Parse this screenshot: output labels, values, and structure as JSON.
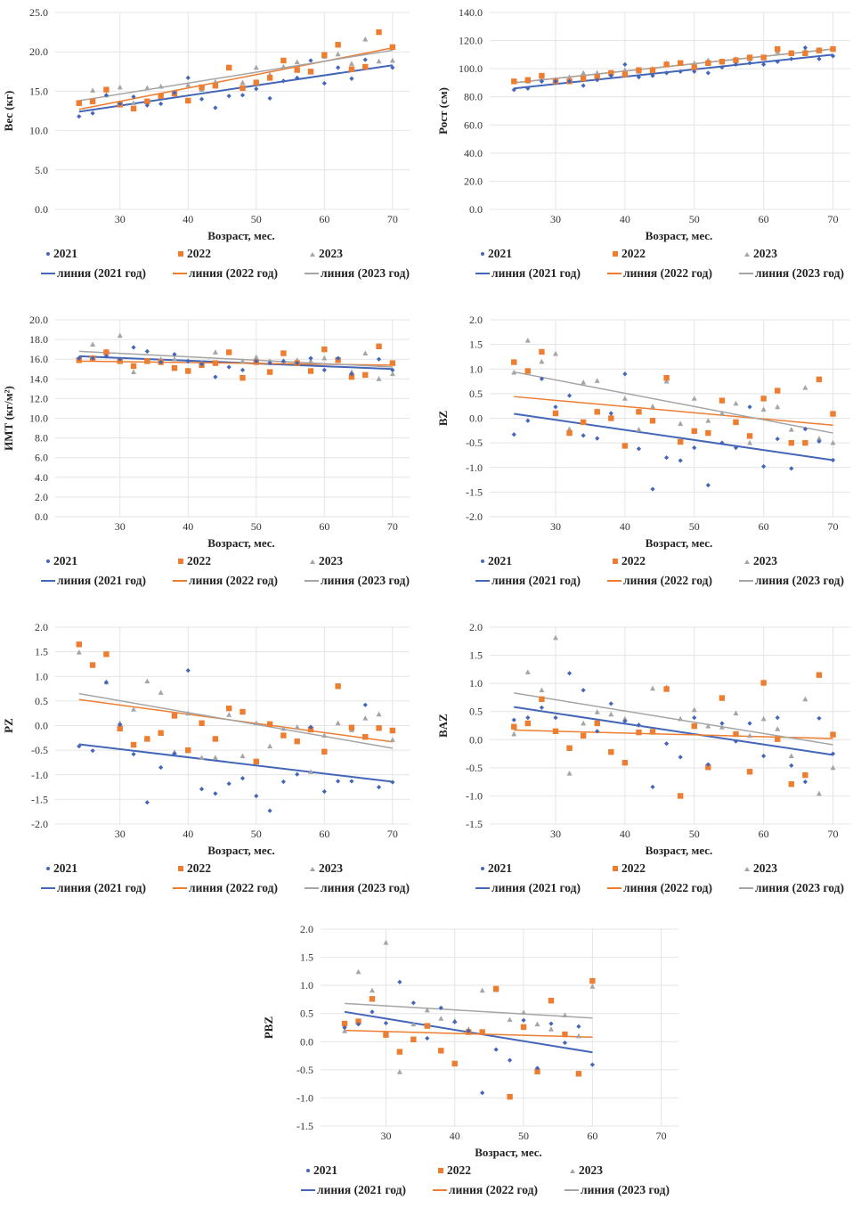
{
  "figure": {
    "legend": {
      "series": [
        "2021",
        "2022",
        "2023"
      ],
      "trend": [
        "линия (2021 год)",
        "линия (2022 год)",
        "линия (2023 год)"
      ]
    },
    "colors": {
      "2021": "#4466b8",
      "2022": "#ed7d31",
      "2023": "#a5a5a5"
    }
  },
  "chart_data": [
    {
      "id": "weight",
      "type": "scatter",
      "title": "",
      "xlabel": "Возраст, мес.",
      "ylabel": "Вес (кг)",
      "xticks": [
        "30",
        "40",
        "50",
        "60",
        "70"
      ],
      "yticks": [
        "0.0",
        "5.0",
        "10.0",
        "15.0",
        "20.0",
        "25.0"
      ],
      "xlim": [
        20.5,
        72.5
      ],
      "ylim": [
        0,
        25
      ],
      "grid": true,
      "legend_position": "bottom",
      "x": [
        24,
        26,
        28,
        30,
        32,
        34,
        36,
        38,
        40,
        42,
        44,
        46,
        48,
        50,
        52,
        54,
        56,
        58,
        60,
        62,
        64,
        66,
        68,
        70
      ],
      "series": [
        {
          "name": "2021",
          "marker": "diamond",
          "values": [
            11.8,
            12.2,
            14.5,
            13.4,
            14.3,
            13.2,
            13.4,
            14.8,
            16.7,
            14.0,
            12.9,
            14.4,
            14.5,
            15.3,
            14.1,
            16.3,
            16.7,
            18.9,
            16.0,
            18.0,
            16.6,
            19.0,
            null,
            18.0
          ],
          "trend": [
            12.4,
            18.3
          ]
        },
        {
          "name": "2022",
          "marker": "square",
          "values": [
            13.5,
            13.7,
            15.2,
            13.3,
            12.8,
            13.7,
            14.4,
            14.7,
            13.8,
            15.5,
            15.7,
            18.0,
            15.4,
            16.1,
            16.7,
            18.9,
            17.7,
            17.5,
            19.6,
            20.9,
            17.8,
            18.1,
            22.5,
            20.6
          ],
          "trend": [
            12.7,
            20.5
          ]
        },
        {
          "name": "2023",
          "marker": "triangle",
          "values": [
            13.4,
            15.1,
            14.5,
            15.5,
            13.5,
            15.4,
            15.6,
            14.9,
            15.8,
            15.2,
            16.2,
            17.9,
            16.1,
            18.0,
            17.1,
            18.1,
            18.7,
            17.4,
            19.4,
            19.7,
            18.5,
            21.6,
            18.8,
            18.9
          ],
          "trend": [
            13.8,
            20.2
          ]
        }
      ]
    },
    {
      "id": "height",
      "type": "scatter",
      "title": "",
      "xlabel": "Возраст, мес.",
      "ylabel": "Рост (см)",
      "xticks": [
        "30",
        "40",
        "50",
        "60",
        "70"
      ],
      "yticks": [
        "0.0",
        "20.0",
        "40.0",
        "60.0",
        "80.0",
        "100.0",
        "120.0",
        "140.0"
      ],
      "xlim": [
        20.5,
        72.5
      ],
      "ylim": [
        0,
        140
      ],
      "grid": true,
      "legend_position": "bottom",
      "x": [
        24,
        26,
        28,
        30,
        32,
        34,
        36,
        38,
        40,
        42,
        44,
        46,
        48,
        50,
        52,
        54,
        56,
        58,
        60,
        62,
        64,
        66,
        68,
        70
      ],
      "series": [
        {
          "name": "2021",
          "marker": "diamond",
          "values": [
            85,
            86,
            91,
            91,
            91,
            88,
            92,
            95,
            103,
            94,
            95,
            97,
            98,
            98,
            97,
            101,
            103,
            104,
            103,
            105,
            107,
            115,
            107,
            109
          ],
          "trend": [
            86,
            110
          ]
        },
        {
          "name": "2022",
          "marker": "square",
          "values": [
            91,
            92,
            95,
            91,
            91,
            93,
            94,
            97,
            96,
            99,
            99,
            103,
            104,
            101,
            104,
            105,
            106,
            108,
            108,
            114,
            111,
            111,
            113,
            114
          ],
          "trend": [
            90,
            114
          ]
        },
        {
          "name": "2023",
          "marker": "triangle",
          "values": [
            91,
            91,
            93,
            92,
            94,
            97,
            97,
            97,
            99,
            98,
            100,
            104,
            104,
            104,
            106,
            105,
            107,
            107,
            108,
            112,
            111,
            113,
            113,
            114
          ],
          "trend": [
            90,
            114
          ]
        }
      ]
    },
    {
      "id": "bmi",
      "type": "scatter",
      "title": "",
      "xlabel": "Возраст, мес.",
      "ylabel": "ИМТ (кг/м²)",
      "xticks": [
        "30",
        "40",
        "50",
        "60",
        "70"
      ],
      "yticks": [
        "0.0",
        "2.0",
        "4.0",
        "6.0",
        "8.0",
        "10.0",
        "12.0",
        "14.0",
        "16.0",
        "18.0",
        "20.0"
      ],
      "xlim": [
        20.5,
        72.5
      ],
      "ylim": [
        0,
        20
      ],
      "grid": true,
      "legend_position": "bottom",
      "x": [
        24,
        26,
        28,
        30,
        32,
        34,
        36,
        38,
        40,
        42,
        44,
        46,
        48,
        50,
        52,
        54,
        56,
        58,
        60,
        62,
        64,
        66,
        68,
        70
      ],
      "series": [
        {
          "name": "2021",
          "marker": "diamond",
          "values": [
            16.1,
            16.1,
            16.3,
            16.0,
            17.2,
            16.8,
            15.7,
            16.5,
            15.8,
            15.5,
            14.2,
            15.2,
            14.9,
            15.8,
            15.6,
            15.8,
            15.6,
            16.1,
            14.9,
            16.1,
            14.5,
            null,
            16.0,
            14.9
          ],
          "trend": [
            16.3,
            15.0
          ]
        },
        {
          "name": "2022",
          "marker": "square",
          "values": [
            15.9,
            16.1,
            16.7,
            15.8,
            15.3,
            15.8,
            15.7,
            15.1,
            14.8,
            15.4,
            15.6,
            16.7,
            14.1,
            15.7,
            14.7,
            16.6,
            15.6,
            14.8,
            17.0,
            15.9,
            14.2,
            14.4,
            17.3,
            15.6
          ],
          "trend": [
            15.8,
            15.4
          ]
        },
        {
          "name": "2023",
          "marker": "triangle",
          "values": [
            16.1,
            17.5,
            16.8,
            18.4,
            14.7,
            15.8,
            16.0,
            16.0,
            15.8,
            15.6,
            16.7,
            16.7,
            15.8,
            16.2,
            15.8,
            15.8,
            15.9,
            15.8,
            16.1,
            16.0,
            14.7,
            16.6,
            14.0,
            14.5
          ],
          "trend": [
            16.8,
            15.2
          ]
        }
      ]
    },
    {
      "id": "bz",
      "type": "scatter",
      "title": "",
      "xlabel": "Возраст, мес.",
      "ylabel": "BZ",
      "xticks": [
        "30",
        "40",
        "50",
        "60",
        "70"
      ],
      "yticks": [
        "-2.0",
        "-1.5",
        "-1.0",
        "-0.5",
        "0.0",
        "0.5",
        "1.0",
        "1.5",
        "2.0"
      ],
      "xlim": [
        20.5,
        72.5
      ],
      "ylim": [
        -2,
        2
      ],
      "grid": true,
      "legend_position": "bottom",
      "x": [
        24,
        26,
        28,
        30,
        32,
        34,
        36,
        38,
        40,
        42,
        44,
        46,
        48,
        50,
        52,
        54,
        56,
        58,
        60,
        62,
        64,
        66,
        68,
        70
      ],
      "series": [
        {
          "name": "2021",
          "marker": "diamond",
          "values": [
            -0.33,
            -0.05,
            0.8,
            0.23,
            0.46,
            -0.35,
            -0.41,
            0.1,
            0.9,
            -0.62,
            -1.44,
            -0.8,
            -0.86,
            -0.6,
            -1.36,
            -0.5,
            -0.6,
            0.23,
            -0.98,
            -0.42,
            -1.02,
            -0.22,
            -0.47,
            -0.85
          ],
          "trend": [
            0.09,
            -0.85
          ]
        },
        {
          "name": "2022",
          "marker": "square",
          "values": [
            1.14,
            0.96,
            1.35,
            0.1,
            -0.3,
            -0.08,
            0.13,
            0.0,
            -0.56,
            0.13,
            -0.05,
            0.82,
            -0.48,
            -0.26,
            -0.3,
            0.36,
            -0.08,
            -0.36,
            0.4,
            0.56,
            -0.5,
            -0.5,
            0.79,
            0.09
          ],
          "trend": [
            0.44,
            -0.14
          ]
        },
        {
          "name": "2023",
          "marker": "triangle",
          "values": [
            0.93,
            1.58,
            1.15,
            1.31,
            -0.22,
            0.73,
            0.76,
            0.03,
            0.4,
            -0.23,
            0.24,
            0.75,
            -0.11,
            0.4,
            -0.05,
            0.1,
            0.3,
            -0.5,
            0.18,
            0.23,
            -0.23,
            0.62,
            -0.41,
            -0.5
          ],
          "trend": [
            0.94,
            -0.3
          ]
        }
      ]
    },
    {
      "id": "pz",
      "type": "scatter",
      "title": "",
      "xlabel": "Возраст, мес.",
      "ylabel": "PZ",
      "xticks": [
        "30",
        "40",
        "50",
        "60",
        "70"
      ],
      "yticks": [
        "-2.0",
        "-1.5",
        "-1.0",
        "-0.5",
        "0.0",
        "0.5",
        "1.0",
        "1.5",
        "2.0"
      ],
      "xlim": [
        20.5,
        72.5
      ],
      "ylim": [
        -2,
        2
      ],
      "grid": true,
      "legend_position": "bottom",
      "x": [
        24,
        26,
        28,
        30,
        32,
        34,
        36,
        38,
        40,
        42,
        44,
        46,
        48,
        50,
        52,
        54,
        56,
        58,
        60,
        62,
        64,
        66,
        68,
        70
      ],
      "series": [
        {
          "name": "2021",
          "marker": "diamond",
          "values": [
            -0.42,
            -0.51,
            0.88,
            0.02,
            -0.58,
            -1.56,
            -0.85,
            -0.57,
            1.12,
            -1.29,
            -1.38,
            -1.18,
            -1.07,
            -1.43,
            -1.73,
            -1.14,
            -0.99,
            -0.03,
            -1.34,
            -1.13,
            -1.13,
            0.42,
            -1.25,
            -1.15
          ],
          "trend": [
            -0.38,
            -1.14
          ]
        },
        {
          "name": "2022",
          "marker": "square",
          "values": [
            1.65,
            1.23,
            1.45,
            -0.06,
            -0.39,
            -0.27,
            -0.15,
            0.2,
            -0.5,
            0.05,
            -0.27,
            0.35,
            0.28,
            -0.73,
            0.03,
            -0.2,
            -0.32,
            -0.08,
            -0.53,
            0.8,
            -0.04,
            -0.23,
            -0.05,
            -0.1
          ],
          "trend": [
            0.53,
            -0.33
          ]
        },
        {
          "name": "2023",
          "marker": "triangle",
          "values": [
            1.49,
            1.23,
            0.88,
            0.05,
            0.33,
            0.9,
            0.67,
            -0.54,
            0.25,
            -0.65,
            -0.65,
            0.22,
            -0.62,
            0.05,
            -0.42,
            -0.06,
            -0.03,
            -0.94,
            -0.2,
            0.05,
            -0.09,
            0.15,
            0.23,
            -0.29
          ],
          "trend": [
            0.65,
            -0.46
          ]
        }
      ]
    },
    {
      "id": "baz",
      "type": "scatter",
      "title": "",
      "xlabel": "Возраст, мес.",
      "ylabel": "BAZ",
      "xticks": [
        "30",
        "40",
        "50",
        "60",
        "70"
      ],
      "yticks": [
        "-1.5",
        "-1.0",
        "-0.5",
        "0.0",
        "0.5",
        "1.0",
        "1.5",
        "2.0"
      ],
      "xlim": [
        20.5,
        72.5
      ],
      "ylim": [
        -1.5,
        2
      ],
      "grid": true,
      "legend_position": "bottom",
      "x": [
        24,
        26,
        28,
        30,
        32,
        34,
        36,
        38,
        40,
        42,
        44,
        46,
        48,
        50,
        52,
        54,
        56,
        58,
        60,
        62,
        64,
        66,
        68,
        70
      ],
      "series": [
        {
          "name": "2021",
          "marker": "diamond",
          "values": [
            0.35,
            0.39,
            0.57,
            0.39,
            1.18,
            0.88,
            0.15,
            0.64,
            0.33,
            0.26,
            -0.84,
            -0.07,
            -0.31,
            0.39,
            -0.44,
            0.29,
            -0.03,
            0.29,
            -0.29,
            0.39,
            -0.46,
            -0.75,
            0.38,
            -0.25
          ],
          "trend": [
            0.58,
            -0.27
          ]
        },
        {
          "name": "2022",
          "marker": "square",
          "values": [
            0.23,
            0.29,
            0.72,
            0.15,
            -0.15,
            0.07,
            0.29,
            -0.22,
            -0.41,
            0.13,
            0.14,
            0.9,
            -1.0,
            0.24,
            -0.49,
            0.74,
            0.1,
            -0.57,
            1.01,
            0.01,
            -0.79,
            -0.63,
            1.15,
            0.09
          ],
          "trend": [
            0.17,
            0.02
          ]
        },
        {
          "name": "2023",
          "marker": "triangle",
          "values": [
            0.1,
            1.2,
            0.88,
            1.81,
            -0.6,
            0.29,
            0.49,
            0.45,
            0.37,
            0.26,
            0.91,
            0.93,
            0.37,
            0.53,
            0.24,
            0.22,
            0.47,
            0.07,
            0.37,
            0.19,
            -0.29,
            0.72,
            -0.96,
            -0.5
          ],
          "trend": [
            0.83,
            -0.09
          ]
        }
      ]
    },
    {
      "id": "pbz",
      "type": "scatter",
      "title": "",
      "xlabel": "Возраст, мес.",
      "ylabel": "PBZ",
      "xticks": [
        "30",
        "40",
        "50",
        "60",
        "70"
      ],
      "yticks": [
        "-1.5",
        "-1.0",
        "-0.5",
        "0.0",
        "0.5",
        "1.0",
        "1.5",
        "2.0"
      ],
      "xlim": [
        20.5,
        72.5
      ],
      "ylim": [
        -1.5,
        2
      ],
      "grid": true,
      "legend_position": "bottom",
      "x": [
        24,
        26,
        28,
        30,
        32,
        34,
        36,
        38,
        40,
        42,
        44,
        46,
        48,
        50,
        52,
        54,
        56,
        58,
        60
      ],
      "series": [
        {
          "name": "2021",
          "marker": "diamond",
          "values": [
            0.25,
            0.31,
            0.53,
            0.33,
            1.06,
            0.69,
            0.06,
            0.6,
            0.35,
            0.19,
            -0.91,
            -0.14,
            -0.33,
            0.38,
            -0.47,
            0.32,
            -0.02,
            0.27,
            -0.41
          ],
          "trend": [
            0.53,
            -0.19
          ]
        },
        {
          "name": "2022",
          "marker": "square",
          "values": [
            0.32,
            0.36,
            0.76,
            0.12,
            -0.18,
            0.04,
            0.28,
            -0.16,
            -0.39,
            0.17,
            0.17,
            0.94,
            -0.98,
            0.26,
            -0.53,
            0.73,
            0.13,
            -0.57,
            1.08
          ],
          "trend": [
            0.2,
            0.08
          ]
        },
        {
          "name": "2023",
          "marker": "triangle",
          "values": [
            0.19,
            1.24,
            0.91,
            1.76,
            -0.54,
            0.31,
            0.56,
            0.41,
            0.37,
            0.22,
            0.91,
            0.92,
            0.39,
            0.52,
            0.31,
            0.22,
            0.47,
            0.1,
            0.98
          ],
          "trend": [
            0.68,
            0.42
          ]
        }
      ]
    }
  ]
}
